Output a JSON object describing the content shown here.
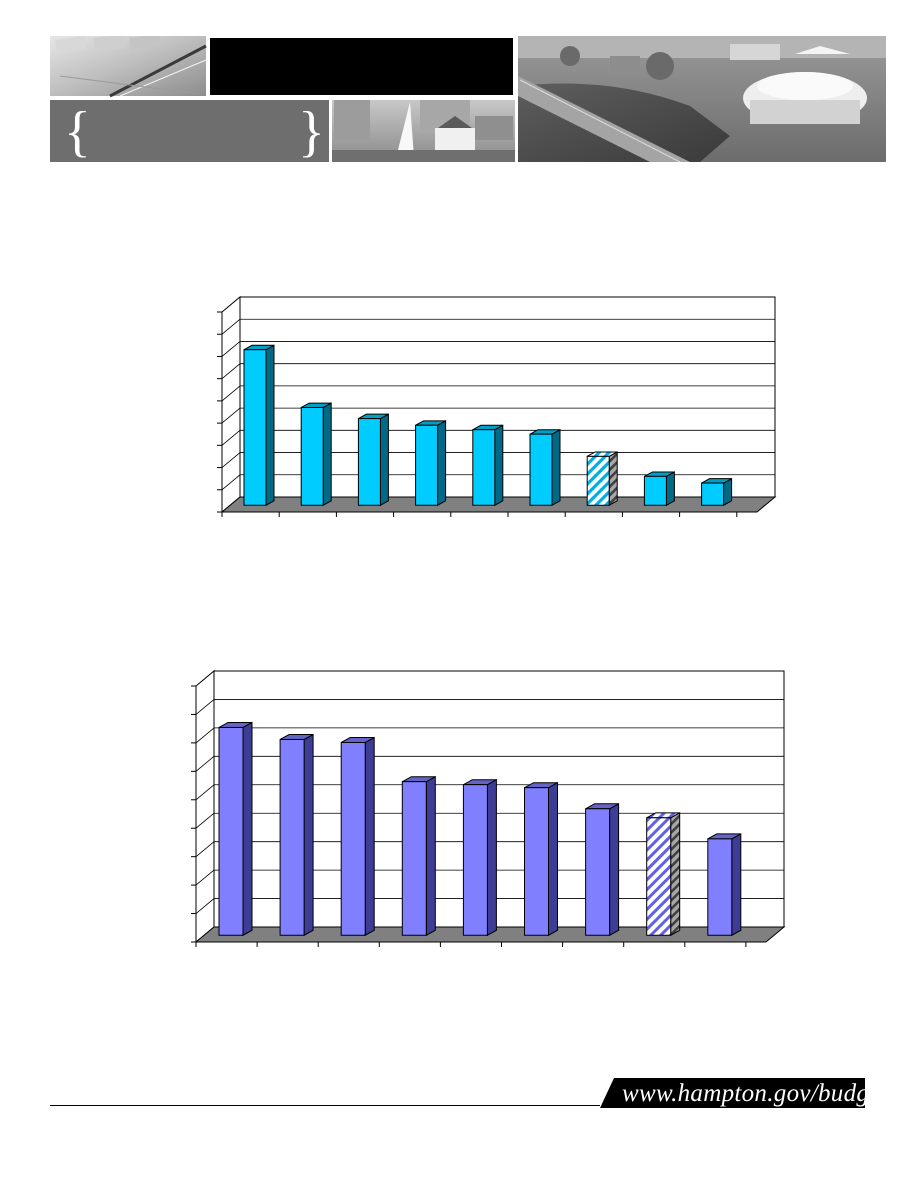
{
  "header": {
    "logo_left_brace": "{",
    "logo_right_brace": "}",
    "photo_1": "calculator-pen-photo",
    "photo_2": "harbor-sailboat-photo",
    "photo_3": "coliseum-highway-photo"
  },
  "charts": {
    "chart_data": [
      {
        "type": "bar",
        "title": "",
        "xlabel": "",
        "ylabel": "",
        "categories": [
          "",
          "",
          "",
          "",
          "",
          "",
          "",
          "",
          ""
        ],
        "values": [
          70,
          44,
          39,
          36,
          34,
          32,
          22,
          13,
          10
        ],
        "highlight_index": 6,
        "ylim": [
          0,
          90
        ],
        "grid": true,
        "color": "#00ccff",
        "side_color": "#006a86"
      },
      {
        "type": "bar",
        "title": "",
        "xlabel": "",
        "ylabel": "",
        "categories": [
          "",
          "",
          "",
          "",
          "",
          "",
          "",
          "",
          ""
        ],
        "values": [
          69,
          65,
          64,
          51,
          50,
          49,
          42,
          39,
          32
        ],
        "highlight_index": 7,
        "ylim": [
          0,
          85
        ],
        "grid": true,
        "color": "#8080ff",
        "side_color": "#3d3d96"
      }
    ]
  },
  "footer": {
    "url": "www.hampton.gov/budget"
  }
}
